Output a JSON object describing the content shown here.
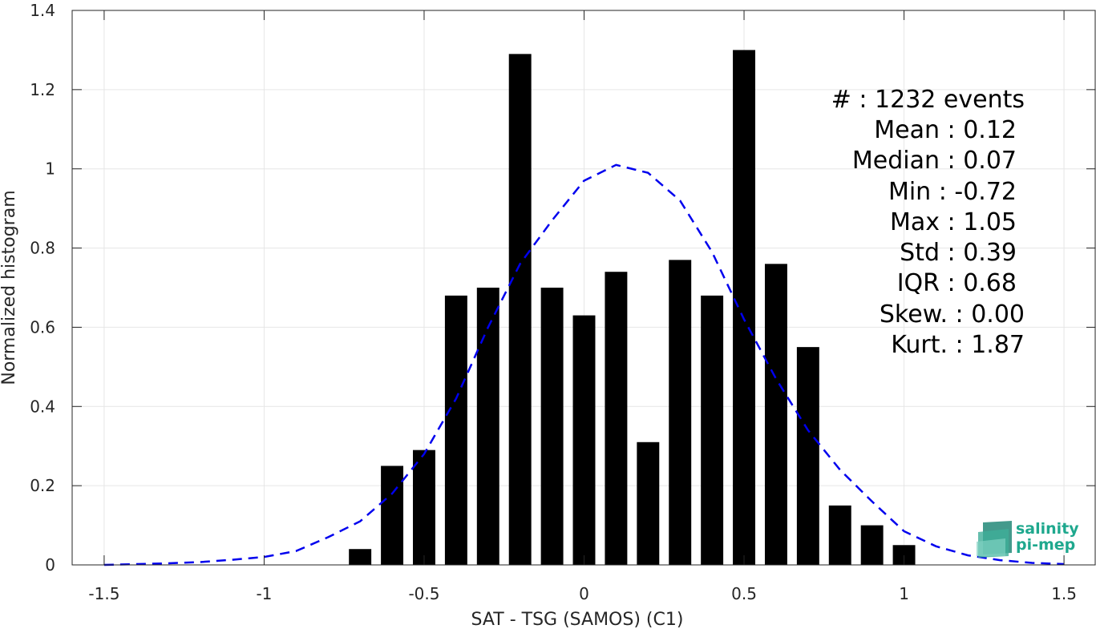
{
  "chart_data": {
    "type": "bar",
    "xlabel": "SAT - TSG (SAMOS) (C1)",
    "ylabel": "Normalized histogram",
    "xlim": [
      -1.6,
      1.6
    ],
    "ylim": [
      0,
      1.4
    ],
    "x_ticks": [
      -1.5,
      -1,
      -0.5,
      0,
      0.5,
      1,
      1.5
    ],
    "x_tick_labels": [
      "-1.5",
      "-1",
      "-0.5",
      "0",
      "0.5",
      "1",
      "1.5"
    ],
    "y_ticks": [
      0,
      0.2,
      0.4,
      0.6,
      0.8,
      1,
      1.2,
      1.4
    ],
    "y_tick_labels": [
      "0",
      "0.2",
      "0.4",
      "0.6",
      "0.8",
      "1",
      "1.2",
      "1.4"
    ],
    "grid": true,
    "bar_color": "#000000",
    "series": [
      {
        "type": "bar",
        "x": [
          -0.7,
          -0.6,
          -0.5,
          -0.4,
          -0.3,
          -0.2,
          -0.1,
          0.0,
          0.1,
          0.2,
          0.3,
          0.4,
          0.5,
          0.6,
          0.7,
          0.8,
          0.9,
          1.0
        ],
        "values": [
          0.04,
          0.25,
          0.29,
          0.68,
          0.7,
          1.29,
          0.7,
          0.63,
          0.74,
          0.31,
          0.77,
          0.68,
          1.3,
          0.76,
          0.55,
          0.15,
          0.1,
          0.05
        ]
      },
      {
        "type": "line",
        "style": "dashed",
        "color": "#0000ee",
        "x": [
          -1.5,
          -1.4,
          -1.3,
          -1.2,
          -1.1,
          -1.0,
          -0.9,
          -0.8,
          -0.7,
          -0.6,
          -0.5,
          -0.4,
          -0.3,
          -0.2,
          -0.1,
          0.0,
          0.1,
          0.2,
          0.3,
          0.4,
          0.5,
          0.6,
          0.7,
          0.8,
          0.9,
          1.0,
          1.1,
          1.2,
          1.3,
          1.4,
          1.5
        ],
        "values": [
          0.0,
          0.002,
          0.004,
          0.007,
          0.013,
          0.02,
          0.035,
          0.07,
          0.11,
          0.18,
          0.28,
          0.42,
          0.6,
          0.76,
          0.87,
          0.97,
          1.01,
          0.99,
          0.92,
          0.79,
          0.62,
          0.47,
          0.34,
          0.24,
          0.16,
          0.085,
          0.047,
          0.024,
          0.012,
          0.005,
          0.002
        ]
      }
    ],
    "annotations": [
      "#  : 1232 events",
      "Mean : 0.12",
      "Median : 0.07",
      "Min : -0.72",
      "Max : 1.05",
      "Std : 0.39",
      "IQR : 0.68",
      "Skew. : 0.00",
      "Kurt. : 1.87"
    ]
  },
  "logo": {
    "line1": "salinity",
    "line2": "pi-mep",
    "color": "#1fa88e"
  }
}
